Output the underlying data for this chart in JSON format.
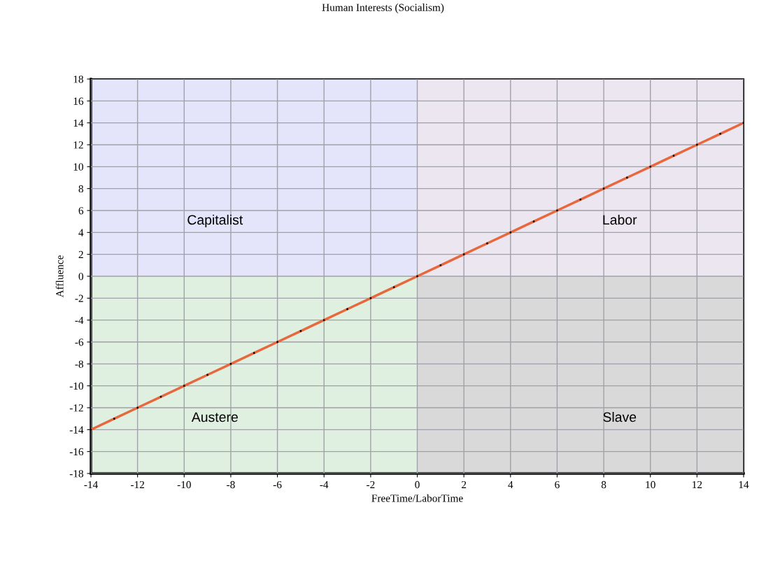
{
  "chart_data": {
    "type": "line",
    "title": "Human Interests (Socialism)",
    "xlabel": "FreeTime/LaborTime",
    "ylabel": "Affluence",
    "xlim": [
      -14,
      14
    ],
    "ylim": [
      -18,
      18
    ],
    "xticks": [
      -14,
      -12,
      -10,
      -8,
      -6,
      -4,
      -2,
      0,
      2,
      4,
      6,
      8,
      10,
      12,
      14
    ],
    "yticks": [
      -18,
      -16,
      -14,
      -12,
      -10,
      -8,
      -6,
      -4,
      -2,
      0,
      2,
      4,
      6,
      8,
      10,
      12,
      14,
      16,
      18
    ],
    "grid": true,
    "legend": false,
    "series": [
      {
        "type": "area",
        "name": "Capitalist",
        "color": "#e4e4fa",
        "x": [
          -14,
          0
        ],
        "values": [
          18,
          18
        ]
      },
      {
        "type": "area",
        "name": "Labor",
        "color": "#ece6f0",
        "x": [
          0,
          14
        ],
        "values": [
          18,
          18
        ]
      },
      {
        "type": "area",
        "name": "Austere",
        "color": "#e0f0e0",
        "x": [
          -14,
          0
        ],
        "values": [
          -18,
          -18
        ]
      },
      {
        "type": "area",
        "name": "Slave",
        "color": "#d9d9d9",
        "x": [
          0,
          14
        ],
        "values": [
          -18,
          -18
        ]
      },
      {
        "color": "#e8673c",
        "marker": "circle",
        "line_style": "solid",
        "x": [
          -14,
          -13,
          -12,
          -11,
          -10,
          -9,
          -8,
          -7,
          -6,
          -5,
          -4,
          -3,
          -2,
          -1,
          0,
          1,
          2,
          3,
          4,
          5,
          6,
          7,
          8,
          9,
          10,
          11,
          12,
          13,
          14
        ],
        "values": [
          -14,
          -13,
          -12,
          -11,
          -10,
          -9,
          -8,
          -7,
          -6,
          -5,
          -4,
          -3,
          -2,
          -1,
          0,
          1,
          2,
          3,
          4,
          5,
          6,
          7,
          8,
          9,
          10,
          11,
          12,
          13,
          14
        ]
      }
    ]
  }
}
